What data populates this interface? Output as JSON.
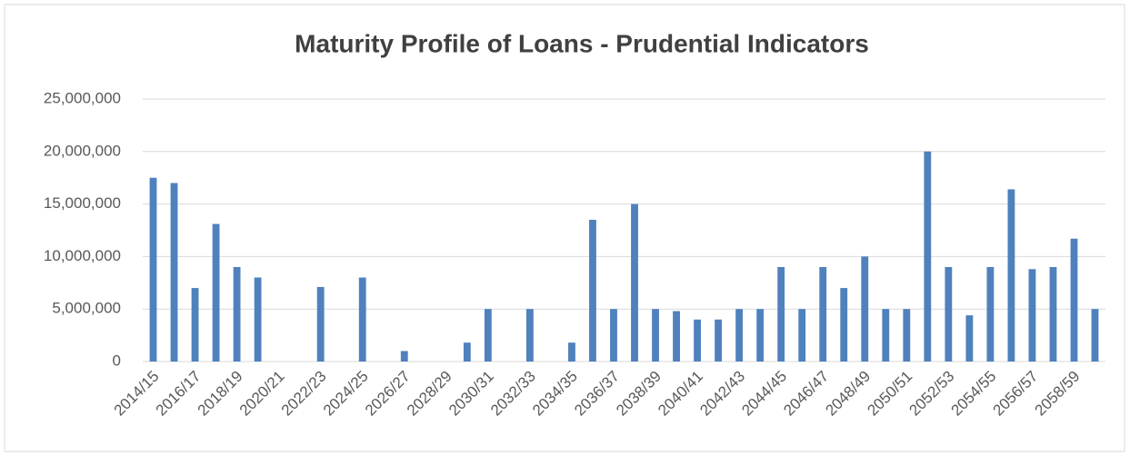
{
  "chart_data": {
    "type": "bar",
    "title": "Maturity Profile of Loans - Prudential Indicators",
    "categories": [
      "2014/15",
      null,
      "2016/17",
      null,
      "2018/19",
      null,
      "2020/21",
      null,
      "2022/23",
      null,
      "2024/25",
      null,
      "2026/27",
      null,
      "2028/29",
      null,
      "2030/31",
      null,
      "2032/33",
      null,
      "2034/35",
      null,
      "2036/37",
      null,
      "2038/39",
      null,
      "2040/41",
      null,
      "2042/43",
      null,
      "2044/45",
      null,
      "2046/47",
      null,
      "2048/49",
      null,
      "2050/51",
      null,
      "2052/53",
      null,
      "2054/55",
      null,
      "2056/57",
      null,
      "2058/59",
      null
    ],
    "values": [
      17500000,
      17000000,
      7000000,
      13100000,
      9000000,
      8000000,
      0,
      0,
      7100000,
      0,
      8000000,
      0,
      1000000,
      0,
      0,
      1800000,
      5000000,
      0,
      5000000,
      0,
      1800000,
      13500000,
      5000000,
      15000000,
      5000000,
      4800000,
      4000000,
      4000000,
      5000000,
      5000000,
      9000000,
      5000000,
      9000000,
      7000000,
      10000000,
      5000000,
      5000000,
      20000000,
      9000000,
      4400000,
      9000000,
      16400000,
      8800000,
      9000000,
      11700000,
      5000000
    ],
    "color": "#4f81bd",
    "ylim": [
      0,
      25000000
    ],
    "yticks": [
      0,
      {
        "value": 5000000,
        "label": "5,000,000"
      },
      {
        "value": 10000000,
        "label": "10,000,000"
      },
      {
        "value": 15000000,
        "label": "15,000,000"
      },
      {
        "value": 20000000,
        "label": "20,000,000"
      },
      {
        "value": 25000000,
        "label": "25,000,000"
      }
    ],
    "grid": true
  }
}
